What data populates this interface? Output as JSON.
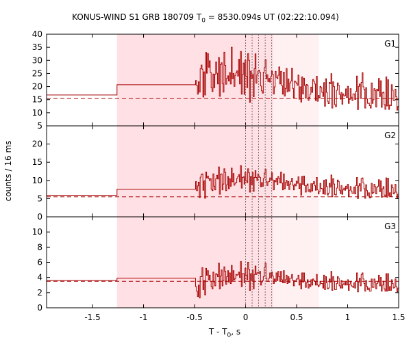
{
  "chart_data": {
    "type": "line",
    "title": "KONUS-WIND S1 GRB 180709",
    "title_t0_label": "T",
    "title_t0_sub": "0",
    "title_suffix": " = 8530.094s UT (02:22:10.094)",
    "xlabel_main": "T - T",
    "xlabel_sub": "0",
    "xlabel_suffix": ", s",
    "ylabel": "counts / 16 ms",
    "xlim": [
      -1.95,
      1.5
    ],
    "xticks": [
      "-1.5",
      "-1",
      "-0.5",
      "0",
      "0.5",
      "1",
      "1.5"
    ],
    "xtick_values": [
      -1.5,
      -1,
      -0.5,
      0,
      0.5,
      1,
      1.5
    ],
    "shaded_regions": [
      {
        "from": -1.26,
        "to": 0.716,
        "color": "#ffe0e4"
      },
      {
        "from": 0.272,
        "to": 0.716,
        "color": "#fff0f2"
      }
    ],
    "vertical_markers": [
      0.0,
      0.064,
      0.128,
      0.192,
      0.256
    ],
    "line_color": "#a80000",
    "panels": [
      {
        "name": "G1",
        "ylim": [
          5,
          40
        ],
        "yticks": [
          "5",
          "10",
          "15",
          "20",
          "25",
          "30",
          "35",
          "40"
        ],
        "ytick_values": [
          5,
          10,
          15,
          20,
          25,
          30,
          35,
          40
        ],
        "background": 15.5,
        "pre": [
          {
            "from": -1.95,
            "to": -1.26,
            "value": 16.8
          },
          {
            "from": -1.26,
            "to": -0.49,
            "value": 20.7
          }
        ],
        "counts": [
          22.3,
          20.4,
          17.1,
          21.8,
          17.9,
          26.8,
          28.2,
          26.6,
          16.0,
          25.6,
          16.8,
          33.0,
          25.1,
          32.6,
          27.4,
          29.8,
          25.4,
          19.6,
          18.1,
          24.8,
          19.6,
          24.7,
          29.4,
          25.1,
          21.0,
          31.1,
          16.3,
          28.4,
          29.1,
          21.2,
          17.9,
          33.1,
          28.1,
          20.9,
          23.2,
          24.1,
          22.1,
          25.3,
          21.0,
          35.0,
          23.1,
          25.0,
          20.1,
          24.3,
          25.2,
          26.0,
          24.0,
          30.4,
          21.0,
          33.4,
          17.1,
          24.6,
          29.0,
          17.0,
          30.1,
          23.9,
          19.6,
          32.6,
          30.0,
          14.0,
          25.9,
          23.1,
          24.6,
          16.1,
          26.8,
          32.5,
          21.3,
          24.5,
          25.9,
          26.3,
          25.4,
          20.2,
          18.4,
          17.5,
          25.5,
          27.2,
          30.3,
          23.0,
          24.5,
          21.9,
          23.1,
          21.7,
          23.8,
          25.9,
          24.7,
          17.2,
          19.9,
          25.8,
          23.5,
          23.1,
          24.3,
          27.5,
          21.0,
          25.8,
          20.3,
          17.1,
          25.5,
          16.4,
          19.3,
          26.9,
          18.0,
          22.9,
          18.3,
          21.4,
          22.1,
          27.0,
          19.3,
          15.8,
          22.1,
          21.7,
          21.2,
          20.5,
          24.4,
          15.2,
          19.9,
          14.1,
          23.7,
          17.2,
          23.2,
          20.4,
          15.6,
          20.8,
          20.4,
          14.8,
          15.9,
          17.1,
          19.8,
          17.8,
          22.7,
          22.0,
          21.0,
          14.7,
          23.9,
          14.4,
          16.6,
          15.7,
          20.1,
          19.6,
          17.8,
          16.2,
          21.5,
          12.5,
          23.0,
          17.8,
          14.4,
          13.5,
          21.6,
          21.1,
          24.9,
          11.8,
          21.8,
          20.0,
          13.1,
          12.3,
          18.6,
          21.4,
          20.5,
          17.0,
          15.2,
          17.7,
          13.3,
          17.2,
          16.4,
          16.5,
          19.1,
          15.8,
          20.1,
          13.6,
          15.1,
          19.2,
          15.9,
          14.7,
          17.2,
          17.2,
          15.1,
          18.2,
          24.0,
          11.2,
          20.1,
          21.0,
          15.5,
          21.6,
          25.3,
          19.9,
          18.9,
          11.8,
          19.6,
          15.3,
          13.6,
          13.7,
          12.7,
          11.8,
          21.4,
          13.6,
          15.0,
          19.2,
          18.5,
          12.2,
          19.0,
          18.4,
          23.1,
          16.2,
          22.2,
          12.1,
          17.6,
          17.9,
          13.1,
          11.3,
          23.7,
          12.6,
          22.6,
          11.3,
          13.0,
          12.7,
          20.7,
          18.6,
          14.7,
          14.7,
          19.0,
          16.1,
          11.0,
          12.4
        ]
      },
      {
        "name": "G2",
        "ylim": [
          0,
          25
        ],
        "yticks": [
          "0",
          "5",
          "10",
          "15",
          "20"
        ],
        "ytick_values": [
          0,
          5,
          10,
          15,
          20
        ],
        "background": 5.5,
        "pre": [
          {
            "from": -1.95,
            "to": -1.26,
            "value": 5.9
          },
          {
            "from": -1.26,
            "to": -0.49,
            "value": 7.6
          }
        ],
        "counts": [
          9.7,
          7.2,
          8.5,
          9.5,
          5.3,
          10.9,
          11.6,
          11.8,
          7.3,
          9.9,
          5.1,
          12.3,
          10.7,
          11.2,
          10.5,
          10.0,
          10.5,
          7.6,
          7.2,
          11.8,
          8.4,
          7.4,
          10.5,
          11.4,
          10.4,
          13.7,
          6.2,
          11.7,
          11.8,
          7.4,
          9.0,
          13.2,
          12.2,
          7.2,
          8.8,
          11.1,
          7.7,
          10.5,
          8.4,
          13.4,
          9.6,
          11.9,
          8.7,
          9.2,
          9.5,
          10.6,
          11.1,
          11.6,
          9.6,
          14.1,
          7.9,
          10.8,
          11.0,
          9.0,
          12.2,
          9.9,
          9.4,
          13.2,
          12.1,
          6.8,
          11.1,
          8.9,
          12.2,
          7.0,
          10.8,
          12.7,
          10.8,
          10.0,
          11.8,
          11.2,
          10.8,
          8.3,
          9.4,
          8.4,
          10.5,
          12.0,
          13.1,
          9.6,
          8.6,
          9.6,
          9.7,
          10.7,
          10.1,
          12.1,
          10.1,
          7.4,
          10.0,
          9.6,
          10.6,
          8.9,
          11.1,
          10.5,
          9.3,
          12.3,
          9.3,
          7.4,
          11.8,
          7.7,
          9.4,
          10.0,
          8.6,
          9.7,
          7.5,
          9.0,
          9.7,
          10.6,
          8.7,
          7.4,
          9.0,
          8.5,
          9.8,
          9.2,
          11.0,
          7.8,
          9.1,
          6.0,
          11.1,
          8.9,
          11.2,
          8.6,
          6.8,
          8.6,
          9.0,
          7.0,
          7.5,
          6.8,
          9.1,
          7.1,
          9.1,
          9.7,
          8.6,
          7.3,
          10.8,
          7.4,
          6.3,
          6.9,
          9.2,
          7.8,
          7.7,
          6.3,
          10.0,
          6.2,
          10.2,
          8.3,
          6.0,
          6.5,
          9.2,
          8.2,
          11.5,
          5.5,
          10.5,
          9.0,
          6.1,
          6.0,
          7.9,
          10.1,
          9.7,
          7.3,
          6.4,
          8.6,
          6.2,
          7.4,
          7.9,
          7.3,
          8.4,
          7.7,
          8.9,
          5.6,
          7.3,
          8.3,
          7.1,
          6.5,
          6.5,
          8.2,
          6.3,
          8.6,
          10.8,
          5.0,
          8.5,
          9.1,
          7.1,
          10.5,
          10.7,
          9.3,
          7.7,
          5.1,
          8.8,
          7.2,
          5.8,
          6.6,
          5.2,
          5.3,
          9.2,
          6.4,
          6.7,
          8.9,
          8.3,
          6.3,
          8.1,
          8.4,
          10.2,
          6.9,
          9.9,
          5.4,
          7.7,
          8.3,
          6.0,
          5.7,
          10.7,
          5.4,
          10.6,
          5.8,
          6.6,
          5.6,
          8.8,
          8.0,
          6.3,
          6.6,
          8.9,
          6.8,
          5.0,
          6.2
        ]
      },
      {
        "name": "G3",
        "ylim": [
          0,
          12
        ],
        "yticks": [
          "0",
          "2",
          "4",
          "6",
          "8",
          "10"
        ],
        "ytick_values": [
          0,
          2,
          4,
          6,
          8,
          10
        ],
        "background": 3.5,
        "pre": [
          {
            "from": -1.95,
            "to": -1.26,
            "value": 3.6
          },
          {
            "from": -1.26,
            "to": -0.49,
            "value": 3.9
          }
        ],
        "counts": [
          2.8,
          2.2,
          1.5,
          3.0,
          1.3,
          4.1,
          4.1,
          5.3,
          2.4,
          3.6,
          1.7,
          5.2,
          4.3,
          4.9,
          3.7,
          4.3,
          3.5,
          2.8,
          2.5,
          4.7,
          3.4,
          2.9,
          4.5,
          4.4,
          4.1,
          5.9,
          2.5,
          4.2,
          5.0,
          2.9,
          3.6,
          5.4,
          4.8,
          3.1,
          4.1,
          4.9,
          3.4,
          4.6,
          3.2,
          5.6,
          3.6,
          4.9,
          3.7,
          3.9,
          4.4,
          4.3,
          4.4,
          4.7,
          4.0,
          6.1,
          2.8,
          4.5,
          4.5,
          3.3,
          5.2,
          4.3,
          3.7,
          6.0,
          5.1,
          2.3,
          4.5,
          3.6,
          5.0,
          2.5,
          4.4,
          5.5,
          4.4,
          4.6,
          4.7,
          4.5,
          4.8,
          3.0,
          3.4,
          3.6,
          4.1,
          5.3,
          5.9,
          3.9,
          3.5,
          3.5,
          3.9,
          4.6,
          4.0,
          4.7,
          4.2,
          3.2,
          3.8,
          3.6,
          4.6,
          3.6,
          4.8,
          4.1,
          3.5,
          4.8,
          3.7,
          3.3,
          4.9,
          3.3,
          3.7,
          4.3,
          3.2,
          4.1,
          3.3,
          3.9,
          3.9,
          4.4,
          3.6,
          2.9,
          3.6,
          3.5,
          3.8,
          3.8,
          4.3,
          3.0,
          3.7,
          2.5,
          4.6,
          3.4,
          4.6,
          3.5,
          2.7,
          3.3,
          3.7,
          2.6,
          3.1,
          2.8,
          3.7,
          3.0,
          3.8,
          3.6,
          3.5,
          3.0,
          4.4,
          3.0,
          2.8,
          3.0,
          3.5,
          3.2,
          3.2,
          2.6,
          4.3,
          2.4,
          4.1,
          3.3,
          2.5,
          2.6,
          3.8,
          3.4,
          4.8,
          2.3,
          4.1,
          3.5,
          2.4,
          2.4,
          3.2,
          4.1,
          3.9,
          2.9,
          2.6,
          3.6,
          2.6,
          3.1,
          3.3,
          3.0,
          3.5,
          3.0,
          3.7,
          2.3,
          3.1,
          3.5,
          2.9,
          2.8,
          2.7,
          3.3,
          2.6,
          3.5,
          4.6,
          2.1,
          3.4,
          3.9,
          2.9,
          4.4,
          4.6,
          3.8,
          3.2,
          2.2,
          3.6,
          2.8,
          2.4,
          2.6,
          2.2,
          2.2,
          3.8,
          2.7,
          2.7,
          3.8,
          3.3,
          2.5,
          3.2,
          3.4,
          4.3,
          2.9,
          4.0,
          2.2,
          3.0,
          3.5,
          2.5,
          2.2,
          4.5,
          2.2,
          4.5,
          2.3,
          2.8,
          2.3,
          3.7,
          3.2,
          2.6,
          2.7,
          3.8,
          2.8,
          2.1,
          2.6
        ]
      }
    ]
  }
}
